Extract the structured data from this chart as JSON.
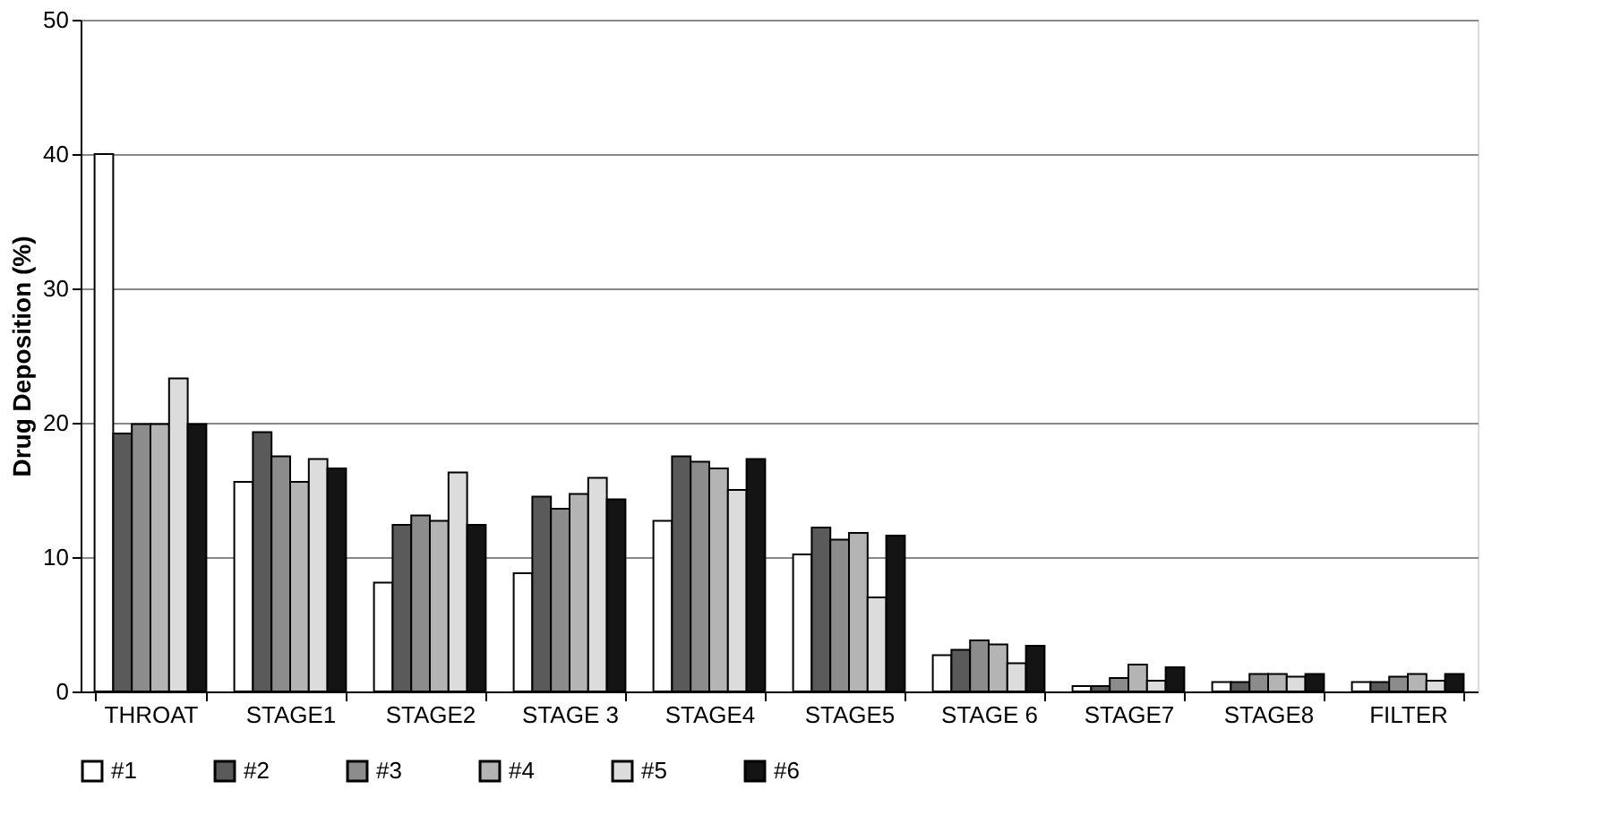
{
  "chart_data": {
    "type": "bar",
    "ylabel": "Drug Deposition (%)",
    "categories": [
      "THROAT",
      "STAGE1",
      "STAGE2",
      "STAGE 3",
      "STAGE4",
      "STAGE5",
      "STAGE 6",
      "STAGE7",
      "STAGE8",
      "FILTER"
    ],
    "series": [
      {
        "name": "#1",
        "color": "#ffffff",
        "values": [
          40,
          15.6,
          8.1,
          8.8,
          12.7,
          10.2,
          2.7,
          0.4,
          0.7,
          0.7
        ]
      },
      {
        "name": "#2",
        "color": "#5a5a5a",
        "values": [
          19.2,
          19.3,
          12.4,
          14.5,
          17.5,
          12.2,
          3.1,
          0.4,
          0.7,
          0.7
        ]
      },
      {
        "name": "#3",
        "color": "#8c8c8c",
        "values": [
          19.9,
          17.5,
          13.1,
          13.6,
          17.1,
          11.3,
          3.8,
          1.0,
          1.3,
          1.1
        ]
      },
      {
        "name": "#4",
        "color": "#b4b4b4",
        "values": [
          19.9,
          15.6,
          12.7,
          14.7,
          16.6,
          11.8,
          3.5,
          2.0,
          1.3,
          1.3
        ]
      },
      {
        "name": "#5",
        "color": "#dcdcdc",
        "values": [
          23.3,
          17.3,
          16.3,
          15.9,
          15.0,
          7.0,
          2.1,
          0.8,
          1.1,
          0.8
        ]
      },
      {
        "name": "#6",
        "color": "#141414",
        "values": [
          19.9,
          16.6,
          12.4,
          14.3,
          17.3,
          11.6,
          3.4,
          1.8,
          1.3,
          1.3
        ]
      }
    ],
    "ylim": [
      0,
      50
    ],
    "yticks": [
      0,
      10,
      20,
      30,
      40,
      50
    ],
    "grid": "y",
    "legend": "bottom"
  }
}
